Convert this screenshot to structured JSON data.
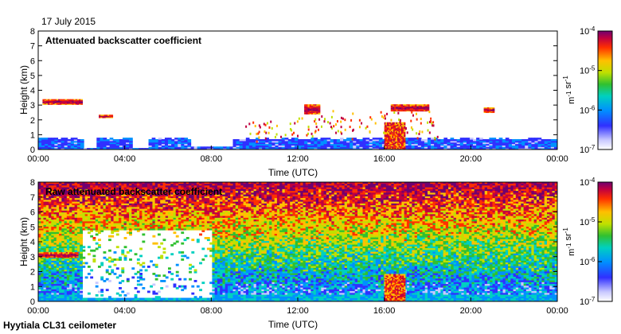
{
  "date_label": "17 July 2015",
  "footer_label": "Hyytiala CL31 ceilometer",
  "chart_data": [
    {
      "type": "heatmap",
      "title": "Attenuated backscatter coefficient",
      "xlabel": "Time (UTC)",
      "ylabel": "Height (km)",
      "x_ticks": [
        "00:00",
        "04:00",
        "08:00",
        "12:00",
        "16:00",
        "20:00",
        "00:00"
      ],
      "y_ticks": [
        0,
        1,
        2,
        3,
        4,
        5,
        6,
        7,
        8
      ],
      "xlim_hours": [
        0,
        24
      ],
      "ylim_km": [
        0,
        8
      ],
      "colorbar": {
        "scale": "log",
        "range": [
          1e-07,
          0.0001
        ],
        "ticks": [
          "10^-7",
          "10^-6",
          "10^-5",
          "10^-4"
        ],
        "unit": "m^-1 sr^-1"
      },
      "features": [
        {
          "kind": "boundary_layer",
          "hours": [
            0,
            24
          ],
          "top_km": 0.7
        },
        {
          "kind": "cloud",
          "hours": [
            0.2,
            2.0
          ],
          "km": [
            3.05,
            3.35
          ]
        },
        {
          "kind": "cloud",
          "hours": [
            2.8,
            3.4
          ],
          "km": [
            2.15,
            2.3
          ]
        },
        {
          "kind": "cloud",
          "hours": [
            12.3,
            13.0
          ],
          "km": [
            2.4,
            3.0
          ]
        },
        {
          "kind": "cloud",
          "hours": [
            16.3,
            18.0
          ],
          "km": [
            2.6,
            3.0
          ]
        },
        {
          "kind": "cloud",
          "hours": [
            20.6,
            21.0
          ],
          "km": [
            2.5,
            2.8
          ]
        },
        {
          "kind": "rain",
          "hours": [
            16.0,
            16.9
          ],
          "km": [
            0,
            1.8
          ]
        }
      ]
    },
    {
      "type": "heatmap",
      "title": "Raw attenuated backscatter coefficient",
      "xlabel": "Time (UTC)",
      "ylabel": "Height (km)",
      "x_ticks": [
        "00:00",
        "04:00",
        "08:00",
        "12:00",
        "16:00",
        "20:00",
        "00:00"
      ],
      "y_ticks": [
        0,
        1,
        2,
        3,
        4,
        5,
        6,
        7,
        8
      ],
      "xlim_hours": [
        0,
        24
      ],
      "ylim_km": [
        0,
        8
      ],
      "colorbar": {
        "scale": "log",
        "range": [
          1e-07,
          0.0001
        ],
        "ticks": [
          "10^-7",
          "10^-6",
          "10^-5",
          "10^-4"
        ],
        "unit": "m^-1 sr^-1"
      },
      "features": [
        {
          "kind": "noise_field",
          "hours": [
            0,
            24
          ],
          "km": [
            0,
            8
          ]
        },
        {
          "kind": "data_gap",
          "hours": [
            2.0,
            8.0
          ],
          "km": [
            0.2,
            4.8
          ]
        },
        {
          "kind": "cloud",
          "hours": [
            0.0,
            1.8
          ],
          "km": [
            2.95,
            3.25
          ]
        },
        {
          "kind": "rain",
          "hours": [
            16.0,
            16.9
          ],
          "km": [
            0,
            1.8
          ]
        }
      ]
    }
  ]
}
